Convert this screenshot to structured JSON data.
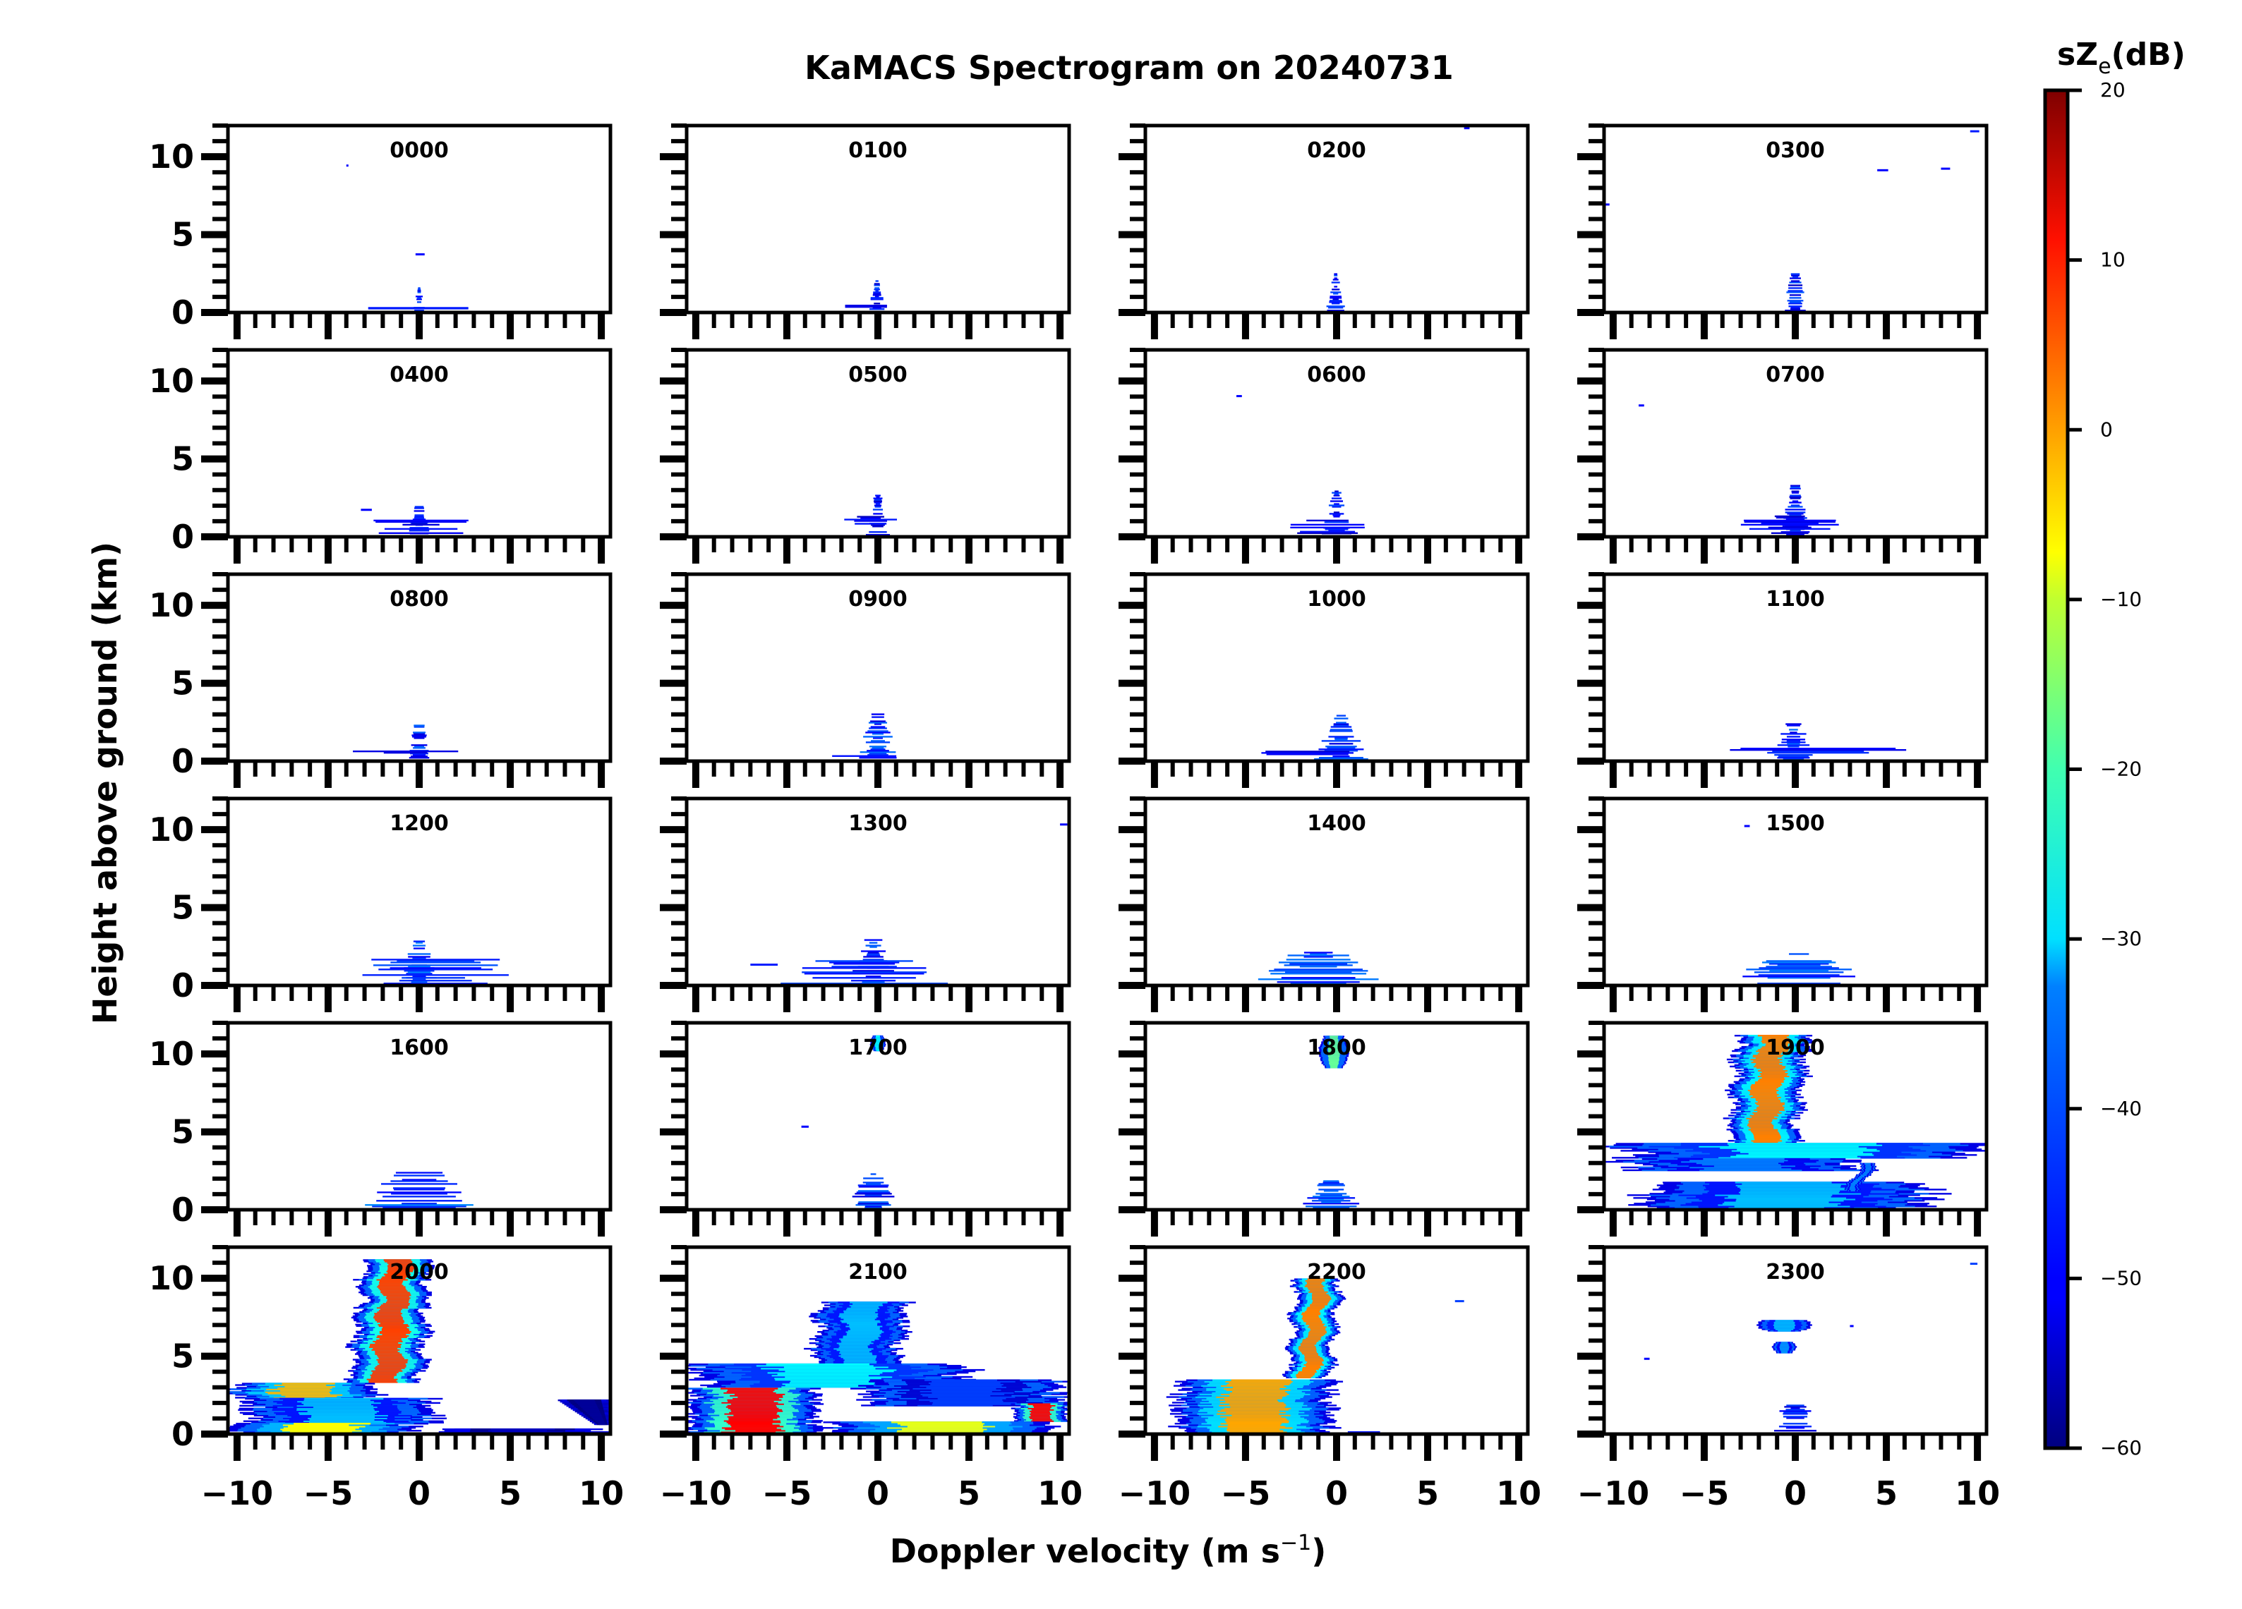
{
  "chart_data": {
    "type": "heatmap",
    "title": "KaMACS Spectrogram on 20240731",
    "xlabel": "Doppler velocity (m s⁻¹)",
    "xlabel_main": "Doppler velocity (m s",
    "xlabel_sup": "−1",
    "xlabel_close": ")",
    "ylabel": "Height above ground (km)",
    "xlim": [
      -10.5,
      10.5
    ],
    "ylim": [
      0,
      12
    ],
    "xticks": [
      -10,
      -5,
      0,
      5,
      10
    ],
    "xtick_labels": [
      "−10",
      "−5",
      "0",
      "5",
      "10"
    ],
    "yticks": [
      0,
      5,
      10
    ],
    "ytick_labels": [
      "0",
      "5",
      "10"
    ],
    "grid": false,
    "layout": {
      "rows": 6,
      "cols": 4
    },
    "colorbar": {
      "label_main": "sZ",
      "label_sub": "e",
      "label_unit": "(dB)",
      "label": "sZe(dB)",
      "colormap": "jet",
      "range": [
        -60,
        20
      ],
      "ticks": [
        20,
        10,
        0,
        -10,
        -20,
        -30,
        -40,
        -50,
        -60
      ],
      "tick_labels": [
        "20",
        "10",
        "0",
        "−10",
        "−20",
        "−30",
        "−40",
        "−50",
        "−60"
      ],
      "placement": "right"
    },
    "panels": [
      {
        "time": "0000",
        "features": [
          {
            "v": [
              -0.3,
              0.3
            ],
            "h": [
              0.0,
              1.6
            ],
            "dbz": -50,
            "kind": "speckle"
          },
          {
            "v": [
              -2.8,
              2.7
            ],
            "h": [
              0.2,
              0.35
            ],
            "dbz": -48,
            "kind": "streak"
          },
          {
            "v": [
              -0.2,
              0.3
            ],
            "h": [
              3.7,
              3.8
            ],
            "dbz": -50,
            "kind": "streak"
          },
          {
            "v": [
              -4.0,
              -3.9
            ],
            "h": [
              9.4,
              9.5
            ],
            "dbz": -50,
            "kind": "dot"
          }
        ]
      },
      {
        "time": "0100",
        "features": [
          {
            "v": [
              -0.5,
              0.4
            ],
            "h": [
              0.0,
              2.1
            ],
            "dbz": -50,
            "kind": "speckle"
          },
          {
            "v": [
              -1.8,
              0.5
            ],
            "h": [
              0.3,
              0.5
            ],
            "dbz": -52,
            "kind": "streak"
          }
        ]
      },
      {
        "time": "0200",
        "features": [
          {
            "v": [
              -0.5,
              0.4
            ],
            "h": [
              0.0,
              2.6
            ],
            "dbz": -50,
            "kind": "speckle"
          },
          {
            "v": [
              7.0,
              7.3
            ],
            "h": [
              11.8,
              11.9
            ],
            "dbz": -50,
            "kind": "dot"
          }
        ]
      },
      {
        "time": "0300",
        "features": [
          {
            "v": [
              -0.6,
              0.6
            ],
            "h": [
              0.0,
              2.7
            ],
            "dbz": -50,
            "kind": "speckle"
          },
          {
            "v": [
              4.5,
              5.1
            ],
            "h": [
              9.1,
              9.2
            ],
            "dbz": -50,
            "kind": "dot"
          },
          {
            "v": [
              8.0,
              8.5
            ],
            "h": [
              9.2,
              9.3
            ],
            "dbz": -50,
            "kind": "dot"
          },
          {
            "v": [
              9.6,
              10.1
            ],
            "h": [
              11.6,
              11.7
            ],
            "dbz": -48,
            "kind": "dot"
          },
          {
            "v": [
              -10.5,
              -10.2
            ],
            "h": [
              6.9,
              7.0
            ],
            "dbz": -50,
            "kind": "dot"
          }
        ]
      },
      {
        "time": "0400",
        "features": [
          {
            "v": [
              -0.6,
              0.6
            ],
            "h": [
              0.0,
              2.0
            ],
            "dbz": -50,
            "kind": "speckle"
          },
          {
            "v": [
              -2.3,
              2.5
            ],
            "h": [
              0.2,
              1.3
            ],
            "dbz": -52,
            "kind": "streak"
          },
          {
            "v": [
              -3.2,
              -2.6
            ],
            "h": [
              1.7,
              1.8
            ],
            "dbz": -50,
            "kind": "dot"
          }
        ]
      },
      {
        "time": "0500",
        "features": [
          {
            "v": [
              -0.6,
              0.6
            ],
            "h": [
              0.0,
              2.7
            ],
            "dbz": -50,
            "kind": "speckle"
          },
          {
            "v": [
              -1.8,
              1.0
            ],
            "h": [
              0.8,
              1.6
            ],
            "dbz": -52,
            "kind": "streak"
          }
        ]
      },
      {
        "time": "0600",
        "features": [
          {
            "v": [
              -0.7,
              0.7
            ],
            "h": [
              0.0,
              3.0
            ],
            "dbz": -50,
            "kind": "speckle"
          },
          {
            "v": [
              -2.5,
              1.5
            ],
            "h": [
              0.2,
              1.2
            ],
            "dbz": -52,
            "kind": "streak"
          },
          {
            "v": [
              -5.5,
              -5.2
            ],
            "h": [
              9.0,
              9.1
            ],
            "dbz": -50,
            "kind": "dot"
          }
        ]
      },
      {
        "time": "0700",
        "features": [
          {
            "v": [
              -0.7,
              0.7
            ],
            "h": [
              0.0,
              3.4
            ],
            "dbz": -50,
            "kind": "speckle"
          },
          {
            "v": [
              -2.8,
              2.2
            ],
            "h": [
              0.2,
              1.4
            ],
            "dbz": -52,
            "kind": "streak"
          },
          {
            "v": [
              -8.6,
              -8.3
            ],
            "h": [
              8.4,
              8.5
            ],
            "dbz": -50,
            "kind": "dot"
          }
        ]
      },
      {
        "time": "0800",
        "features": [
          {
            "v": [
              -0.7,
              0.7
            ],
            "h": [
              0.0,
              2.9
            ],
            "dbz": -48,
            "kind": "speckle"
          },
          {
            "v": [
              -4.0,
              2.5
            ],
            "h": [
              0.5,
              0.8
            ],
            "dbz": -52,
            "kind": "streak"
          }
        ]
      },
      {
        "time": "0900",
        "features": [
          {
            "v": [
              -1.0,
              1.0
            ],
            "h": [
              0.0,
              3.3
            ],
            "dbz": -48,
            "kind": "speckle"
          },
          {
            "v": [
              -6.0,
              4.5
            ],
            "h": [
              0.2,
              0.5
            ],
            "dbz": -50,
            "kind": "streak"
          }
        ]
      },
      {
        "time": "1000",
        "features": [
          {
            "v": [
              -1.0,
              1.5
            ],
            "h": [
              0.0,
              3.0
            ],
            "dbz": -48,
            "kind": "speckle"
          },
          {
            "v": [
              -4.7,
              1.5
            ],
            "h": [
              0.4,
              0.8
            ],
            "dbz": -50,
            "kind": "streak"
          }
        ]
      },
      {
        "time": "1100",
        "features": [
          {
            "v": [
              -1.2,
              1.0
            ],
            "h": [
              0.0,
              2.6
            ],
            "dbz": -48,
            "kind": "speckle"
          },
          {
            "v": [
              -3.5,
              6.0
            ],
            "h": [
              0.5,
              0.9
            ],
            "dbz": -50,
            "kind": "streak"
          }
        ]
      },
      {
        "time": "1200",
        "features": [
          {
            "v": [
              -1.0,
              1.0
            ],
            "h": [
              0.0,
              2.9
            ],
            "dbz": -46,
            "kind": "speckle"
          },
          {
            "v": [
              -3.0,
              4.8
            ],
            "h": [
              0.0,
              1.8
            ],
            "dbz": -46,
            "kind": "streak"
          }
        ]
      },
      {
        "time": "1300",
        "features": [
          {
            "v": [
              -1.5,
              1.0
            ],
            "h": [
              0.0,
              3.0
            ],
            "dbz": -48,
            "kind": "speckle"
          },
          {
            "v": [
              -5.0,
              3.5
            ],
            "h": [
              0.0,
              1.6
            ],
            "dbz": -46,
            "kind": "streak"
          },
          {
            "v": [
              -7.0,
              -5.5
            ],
            "h": [
              1.3,
              1.4
            ],
            "dbz": -48,
            "kind": "streak"
          },
          {
            "v": [
              10.0,
              10.4
            ],
            "h": [
              10.3,
              10.4
            ],
            "dbz": -50,
            "kind": "dot"
          }
        ]
      },
      {
        "time": "1400",
        "features": [
          {
            "v": [
              -4.5,
              2.5
            ],
            "h": [
              0.0,
              2.2
            ],
            "dbz": -46,
            "kind": "speckle"
          }
        ]
      },
      {
        "time": "1500",
        "features": [
          {
            "v": [
              -3.3,
              3.7
            ],
            "h": [
              0.0,
              2.1
            ],
            "dbz": -46,
            "kind": "speckle"
          },
          {
            "v": [
              -2.8,
              -2.5
            ],
            "h": [
              10.2,
              10.3
            ],
            "dbz": -50,
            "kind": "dot"
          }
        ]
      },
      {
        "time": "1600",
        "features": [
          {
            "v": [
              -3.0,
              3.0
            ],
            "h": [
              0.0,
              2.6
            ],
            "dbz": -46,
            "kind": "speckle"
          }
        ]
      },
      {
        "time": "1700",
        "features": [
          {
            "v": [
              -1.5,
              1.0
            ],
            "h": [
              0.0,
              2.3
            ],
            "dbz": -48,
            "kind": "speckle"
          },
          {
            "v": [
              -0.4,
              0.4
            ],
            "h": [
              10.2,
              11.2
            ],
            "dbz": -30,
            "kind": "blob"
          },
          {
            "v": [
              -4.2,
              -3.8
            ],
            "h": [
              5.3,
              5.4
            ],
            "dbz": -50,
            "kind": "dot"
          }
        ]
      },
      {
        "time": "1800",
        "features": [
          {
            "v": [
              -0.9,
              0.6
            ],
            "h": [
              9.1,
              11.2
            ],
            "dbz": -22,
            "kind": "blob"
          },
          {
            "v": [
              -1.8,
              1.2
            ],
            "h": [
              0.0,
              2.0
            ],
            "dbz": -46,
            "kind": "speckle"
          }
        ]
      },
      {
        "time": "1900",
        "features": [
          {
            "v": [
              -3.5,
              0.5
            ],
            "h": [
              4.3,
              11.2
            ],
            "dbz": 0,
            "kind": "column"
          },
          {
            "v": [
              -10.5,
              10.5
            ],
            "h": [
              3.3,
              4.3
            ],
            "dbz": -30,
            "kind": "band"
          },
          {
            "v": [
              -9.5,
              4.0
            ],
            "h": [
              2.5,
              3.3
            ],
            "dbz": -40,
            "kind": "band"
          },
          {
            "v": [
              -8.5,
              7.5
            ],
            "h": [
              0.0,
              1.8
            ],
            "dbz": -35,
            "kind": "band"
          },
          {
            "v": [
              3.2,
              4.0
            ],
            "h": [
              1.2,
              3.0
            ],
            "dbz": -40,
            "kind": "column"
          }
        ]
      },
      {
        "time": "2000",
        "features": [
          {
            "v": [
              -3.5,
              0.5
            ],
            "h": [
              3.3,
              11.2
            ],
            "dbz": 5,
            "kind": "column"
          },
          {
            "v": [
              -10.5,
              -2.0
            ],
            "h": [
              2.3,
              3.3
            ],
            "dbz": -5,
            "kind": "band"
          },
          {
            "v": [
              -9.5,
              1.0
            ],
            "h": [
              0.7,
              2.3
            ],
            "dbz": -35,
            "kind": "band"
          },
          {
            "v": [
              -10.5,
              0.0
            ],
            "h": [
              0.0,
              0.7
            ],
            "dbz": -10,
            "kind": "band"
          },
          {
            "v": [
              1.0,
              10.5
            ],
            "h": [
              0.0,
              0.4
            ],
            "dbz": -55,
            "kind": "band"
          },
          {
            "v": [
              7.5,
              10.5
            ],
            "h": [
              0.6,
              2.2
            ],
            "dbz": -58,
            "kind": "wedge"
          }
        ]
      },
      {
        "time": "2100",
        "features": [
          {
            "v": [
              -3.5,
              1.5
            ],
            "h": [
              4.0,
              8.5
            ],
            "dbz": -35,
            "kind": "column"
          },
          {
            "v": [
              -10.5,
              5.0
            ],
            "h": [
              3.0,
              4.5
            ],
            "dbz": -30,
            "kind": "band"
          },
          {
            "v": [
              -10.5,
              -3.0
            ],
            "h": [
              0.0,
              3.0
            ],
            "dbz": 10,
            "kind": "band"
          },
          {
            "v": [
              -1.0,
              10.5
            ],
            "h": [
              1.8,
              3.5
            ],
            "dbz": -45,
            "kind": "band"
          },
          {
            "v": [
              7.5,
              10.5
            ],
            "h": [
              0.8,
              2.0
            ],
            "dbz": 10,
            "kind": "band"
          },
          {
            "v": [
              -3.0,
              10.5
            ],
            "h": [
              0.0,
              0.8
            ],
            "dbz": -12,
            "kind": "band"
          }
        ]
      },
      {
        "time": "2200",
        "features": [
          {
            "v": [
              -2.5,
              0.0
            ],
            "h": [
              3.6,
              10.0
            ],
            "dbz": 0,
            "kind": "column"
          },
          {
            "v": [
              -9.0,
              0.0
            ],
            "h": [
              0.0,
              3.5
            ],
            "dbz": -3,
            "kind": "band"
          },
          {
            "v": [
              0.5,
              2.5
            ],
            "h": [
              0.0,
              0.3
            ],
            "dbz": -52,
            "kind": "streak"
          },
          {
            "v": [
              8.0,
              10.5
            ],
            "h": [
              0.0,
              0.3
            ],
            "dbz": -55,
            "kind": "streak"
          },
          {
            "v": [
              6.5,
              7.0
            ],
            "h": [
              8.5,
              8.6
            ],
            "dbz": -45,
            "kind": "dot"
          }
        ]
      },
      {
        "time": "2300",
        "features": [
          {
            "v": [
              -2.0,
              0.8
            ],
            "h": [
              6.6,
              7.3
            ],
            "dbz": -35,
            "kind": "blob"
          },
          {
            "v": [
              -1.2,
              0.0
            ],
            "h": [
              5.2,
              5.9
            ],
            "dbz": -38,
            "kind": "blob"
          },
          {
            "v": [
              -1.5,
              1.5
            ],
            "h": [
              0.0,
              2.0
            ],
            "dbz": -52,
            "kind": "speckle"
          },
          {
            "v": [
              -8.3,
              -8.0
            ],
            "h": [
              4.8,
              4.9
            ],
            "dbz": -50,
            "kind": "dot"
          },
          {
            "v": [
              9.6,
              10.0
            ],
            "h": [
              10.9,
              11.0
            ],
            "dbz": -45,
            "kind": "dot"
          },
          {
            "v": [
              3.0,
              3.2
            ],
            "h": [
              6.9,
              7.0
            ],
            "dbz": -50,
            "kind": "dot"
          }
        ]
      }
    ]
  }
}
